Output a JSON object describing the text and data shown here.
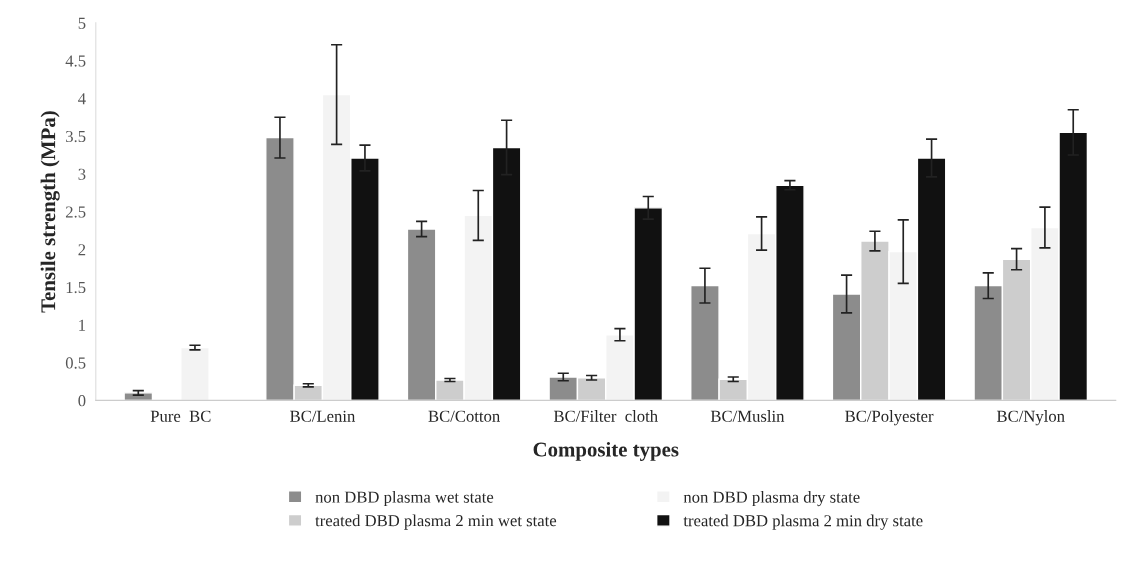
{
  "chart_data": {
    "type": "bar",
    "xlabel": "Composite types",
    "ylabel": "Tensile strength (MPa)",
    "categories": [
      "Pure  BC",
      "BC/Lenin",
      "BC/Cotton",
      "BC/Filter  cloth",
      "BC/Muslin",
      "BC/Polyester",
      "BC/Nylon"
    ],
    "series": [
      {
        "name": "non DBD plasma wet state",
        "color": "#8c8c8c",
        "values": [
          0.1,
          3.48,
          2.27,
          0.31,
          1.52,
          1.41,
          1.52
        ],
        "errors": [
          0.03,
          0.27,
          0.1,
          0.05,
          0.23,
          0.25,
          0.17
        ]
      },
      {
        "name": "treated DBD plasma 2 min wet state",
        "color": "#cdcdcd",
        "values": [
          null,
          0.2,
          0.27,
          0.3,
          0.28,
          2.11,
          1.87
        ],
        "errors": [
          null,
          0.02,
          0.02,
          0.03,
          0.03,
          0.13,
          0.14
        ]
      },
      {
        "name": "non DBD plasma dry state",
        "color": "#f3f3f3",
        "values": [
          0.7,
          4.05,
          2.45,
          0.87,
          2.21,
          1.97,
          2.29
        ],
        "errors": [
          0.03,
          0.66,
          0.33,
          0.08,
          0.22,
          0.42,
          0.27
        ]
      },
      {
        "name": "treated DBD plasma 2 min dry state",
        "color": "#111111",
        "values": [
          null,
          3.21,
          3.35,
          2.55,
          2.85,
          3.21,
          3.55
        ],
        "errors": [
          null,
          0.17,
          0.36,
          0.15,
          0.06,
          0.25,
          0.3
        ]
      }
    ],
    "ylim": [
      0,
      5
    ],
    "yticks": [
      0,
      0.5,
      1,
      1.5,
      2,
      2.5,
      3,
      3.5,
      4,
      4.5,
      5
    ],
    "grid": false,
    "legend": "bottom"
  }
}
